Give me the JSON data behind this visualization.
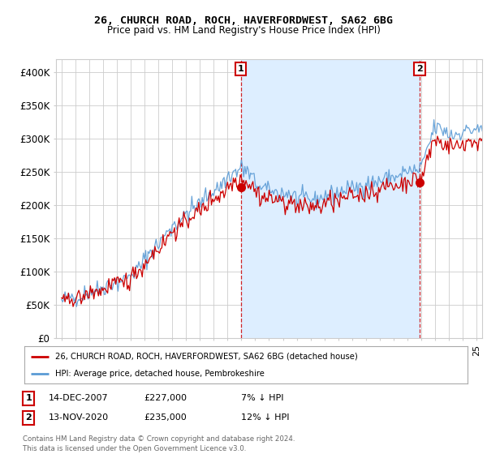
{
  "title": "26, CHURCH ROAD, ROCH, HAVERFORDWEST, SA62 6BG",
  "subtitle": "Price paid vs. HM Land Registry's House Price Index (HPI)",
  "ylim": [
    0,
    420000
  ],
  "yticks": [
    0,
    50000,
    100000,
    150000,
    200000,
    250000,
    300000,
    350000,
    400000
  ],
  "ytick_labels": [
    "£0",
    "£50K",
    "£100K",
    "£150K",
    "£200K",
    "£250K",
    "£300K",
    "£350K",
    "£400K"
  ],
  "red_color": "#cc0000",
  "blue_color": "#5b9bd5",
  "shade_color": "#ddeeff",
  "marker1_date": 2007.958,
  "marker1_value": 227000,
  "marker2_date": 2020.874,
  "marker2_value": 235000,
  "legend_label_red": "26, CHURCH ROAD, ROCH, HAVERFORDWEST, SA62 6BG (detached house)",
  "legend_label_blue": "HPI: Average price, detached house, Pembrokeshire",
  "note1_date": "14-DEC-2007",
  "note1_price": "£227,000",
  "note1_hpi": "7% ↓ HPI",
  "note2_date": "13-NOV-2020",
  "note2_price": "£235,000",
  "note2_hpi": "12% ↓ HPI",
  "footer": "Contains HM Land Registry data © Crown copyright and database right 2024.\nThis data is licensed under the Open Government Licence v3.0.",
  "background_color": "#ffffff",
  "grid_color": "#cccccc"
}
